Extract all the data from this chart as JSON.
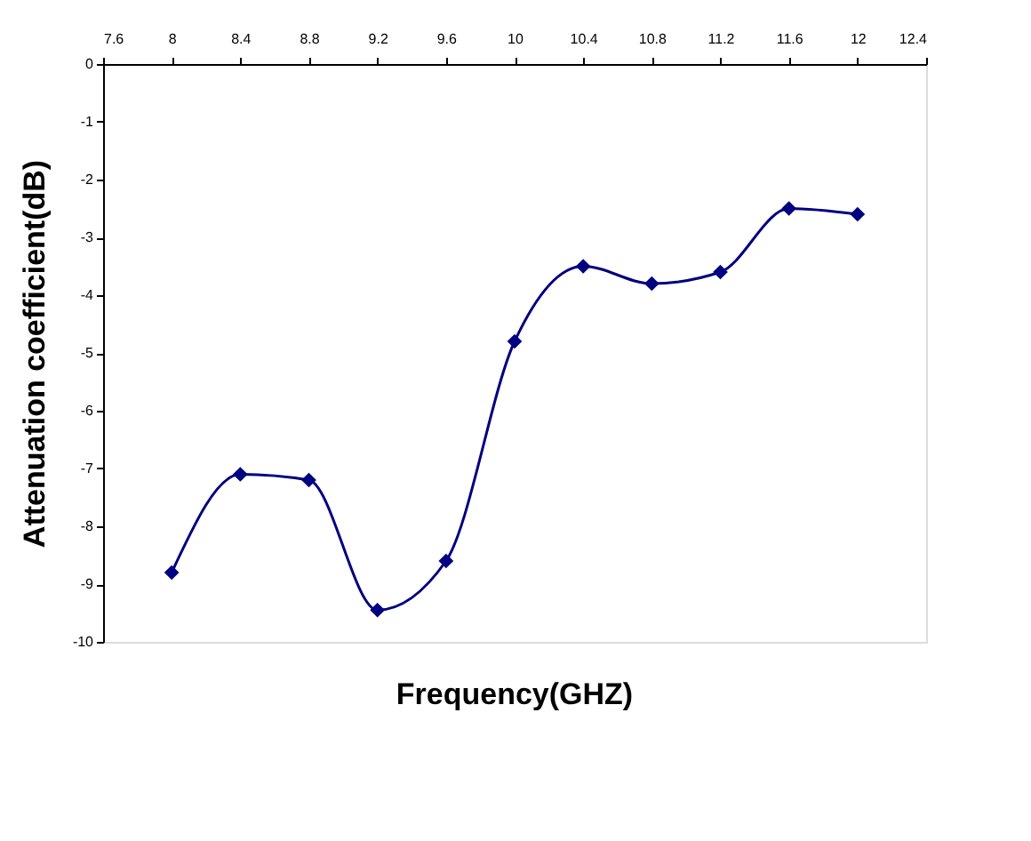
{
  "chart_data": {
    "type": "line",
    "xlabel": "Frequency(GHZ)",
    "ylabel": "Attenuation coefficient(dB)",
    "x": [
      8,
      8.4,
      8.8,
      9.2,
      9.6,
      10,
      10.4,
      10.8,
      11.2,
      11.6,
      12
    ],
    "series": [
      {
        "color": "#000080",
        "values": [
          -8.8,
          -7.1,
          -7.2,
          -9.45,
          -8.6,
          -4.8,
          -3.5,
          -3.8,
          -3.6,
          -2.5,
          -2.6
        ]
      }
    ],
    "xlim": [
      7.6,
      12.4
    ],
    "xticks": [
      7.6,
      8,
      8.4,
      8.8,
      9.2,
      9.6,
      10,
      10.4,
      10.8,
      11.2,
      11.6,
      12,
      12.4
    ],
    "ylim": [
      -10,
      0
    ],
    "yticks": [
      0,
      -1,
      -2,
      -3,
      -4,
      -5,
      -6,
      -7,
      -8,
      -9,
      -10
    ],
    "marker": "diamond",
    "line_style": "solid",
    "grid": false
  }
}
